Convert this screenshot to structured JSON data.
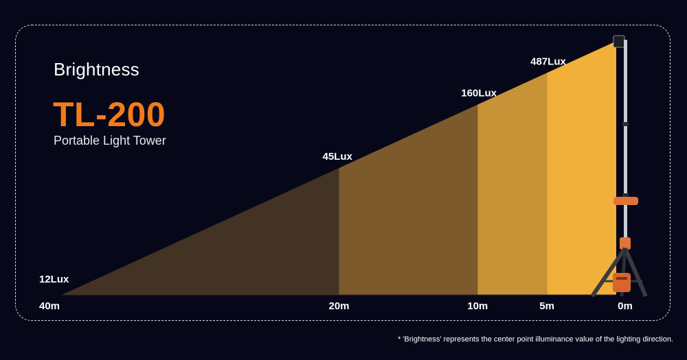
{
  "heading": "Brightness",
  "model": "TL-200",
  "subtitle": "Portable Light Tower",
  "footnote": "* 'Brightness' represents the center point illuminance value of the lighting direction.",
  "colors": {
    "background": "#06081a",
    "model_accent": "#f47b1a",
    "zone_0_5m": "#f0b03a",
    "zone_5_10m": "#c89237",
    "zone_10_20m": "#7d5a2c",
    "zone_20_40m": "#433324"
  },
  "chart_data": {
    "type": "area",
    "x_ticks": [
      "40m",
      "20m",
      "10m",
      "5m",
      "0m"
    ],
    "x": [
      40,
      20,
      10,
      5
    ],
    "x_unit": "m",
    "values": [
      12,
      45,
      160,
      487
    ],
    "value_labels": [
      "12Lux",
      "45Lux",
      "160Lux",
      "487Lux"
    ],
    "y_unit": "Lux"
  }
}
